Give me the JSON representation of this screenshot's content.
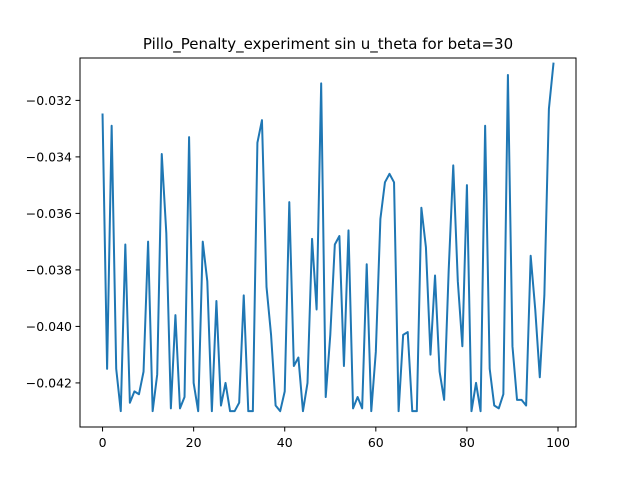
{
  "chart_data": {
    "type": "line",
    "title": "Pillo_Penalty_experiment sin u_theta for beta=30",
    "xlabel": "",
    "ylabel": "",
    "xlim": [
      -4.95,
      103.95
    ],
    "ylim": [
      -0.04356,
      -0.0305
    ],
    "grid": false,
    "x_ticks": [
      0,
      20,
      40,
      60,
      80,
      100
    ],
    "x_tick_labels": [
      "0",
      "20",
      "40",
      "60",
      "80",
      "100"
    ],
    "y_ticks": [
      -0.042,
      -0.04,
      -0.038,
      -0.036,
      -0.034,
      -0.032
    ],
    "y_tick_labels": [
      "−0.042",
      "−0.040",
      "−0.038",
      "−0.036",
      "−0.034",
      "−0.032"
    ],
    "series": [
      {
        "color": "#1f77b4",
        "x": [
          0,
          1,
          2,
          3,
          4,
          5,
          6,
          7,
          8,
          9,
          10,
          11,
          12,
          13,
          14,
          15,
          16,
          17,
          18,
          19,
          20,
          21,
          22,
          23,
          24,
          25,
          26,
          27,
          28,
          29,
          30,
          31,
          32,
          33,
          34,
          35,
          36,
          37,
          38,
          39,
          40,
          41,
          42,
          43,
          44,
          45,
          46,
          47,
          48,
          49,
          50,
          51,
          52,
          53,
          54,
          55,
          56,
          57,
          58,
          59,
          60,
          61,
          62,
          63,
          64,
          65,
          66,
          67,
          68,
          69,
          70,
          71,
          72,
          73,
          74,
          75,
          76,
          77,
          78,
          79,
          80,
          81,
          82,
          83,
          84,
          85,
          86,
          87,
          88,
          89,
          90,
          91,
          92,
          93,
          94,
          95,
          96,
          97,
          98,
          99
        ],
        "y": [
          -0.0325,
          -0.0415,
          -0.0329,
          -0.0415,
          -0.043,
          -0.0371,
          -0.0427,
          -0.0423,
          -0.0424,
          -0.0416,
          -0.037,
          -0.043,
          -0.0417,
          -0.0339,
          -0.0367,
          -0.0429,
          -0.0396,
          -0.0429,
          -0.0425,
          -0.0333,
          -0.042,
          -0.043,
          -0.037,
          -0.0384,
          -0.043,
          -0.0391,
          -0.0428,
          -0.042,
          -0.043,
          -0.043,
          -0.0427,
          -0.0389,
          -0.043,
          -0.043,
          -0.0335,
          -0.0327,
          -0.0386,
          -0.0403,
          -0.0428,
          -0.043,
          -0.0423,
          -0.0356,
          -0.0414,
          -0.0411,
          -0.043,
          -0.042,
          -0.0369,
          -0.0394,
          -0.0314,
          -0.0425,
          -0.0403,
          -0.0371,
          -0.0368,
          -0.0414,
          -0.0366,
          -0.0429,
          -0.0425,
          -0.0429,
          -0.0378,
          -0.043,
          -0.0409,
          -0.0362,
          -0.0349,
          -0.0346,
          -0.0349,
          -0.043,
          -0.0403,
          -0.0402,
          -0.043,
          -0.043,
          -0.0358,
          -0.0372,
          -0.041,
          -0.0382,
          -0.0416,
          -0.0426,
          -0.038,
          -0.0343,
          -0.0384,
          -0.0407,
          -0.035,
          -0.043,
          -0.042,
          -0.043,
          -0.0329,
          -0.0415,
          -0.0428,
          -0.0429,
          -0.0424,
          -0.0311,
          -0.0407,
          -0.0426,
          -0.0426,
          -0.0428,
          -0.0375,
          -0.0394,
          -0.0418,
          -0.0389,
          -0.0323,
          -0.0307
        ]
      }
    ]
  }
}
